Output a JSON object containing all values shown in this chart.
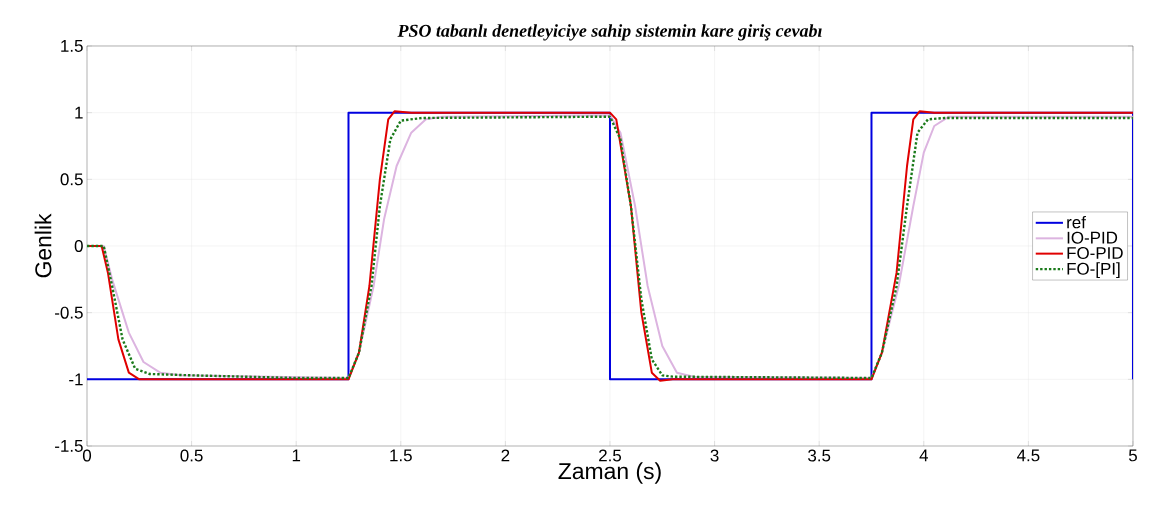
{
  "chart_data": {
    "type": "line",
    "title": "PSO tabanlı denetleyiciye sahip sistemin kare giriş cevabı",
    "xlabel": "Zaman (s)",
    "ylabel": "Genlik",
    "xlim": [
      0,
      5
    ],
    "ylim": [
      -1.5,
      1.5
    ],
    "xticks": [
      0,
      0.5,
      1,
      1.5,
      2,
      2.5,
      3,
      3.5,
      4,
      4.5,
      5
    ],
    "yticks": [
      -1.5,
      -1,
      -0.5,
      0,
      0.5,
      1,
      1.5
    ],
    "grid": true,
    "legend": "right",
    "series": [
      {
        "name": "ref",
        "color": "#0000e0",
        "type": "step",
        "x": [
          0,
          1.25,
          1.25,
          2.5,
          2.5,
          3.75,
          3.75,
          5,
          5
        ],
        "values": [
          -1,
          -1,
          1,
          1,
          -1,
          -1,
          1,
          1,
          -1
        ]
      },
      {
        "name": "IO-PID",
        "color": "#dcb4e0",
        "x": [
          0,
          0.08,
          0.12,
          0.2,
          0.27,
          0.35,
          0.45,
          1.25,
          1.3,
          1.37,
          1.42,
          1.48,
          1.55,
          1.62,
          1.7,
          2.5,
          2.55,
          2.62,
          2.68,
          2.75,
          2.82,
          2.9,
          3.75,
          3.8,
          3.88,
          3.95,
          4.0,
          4.05,
          4.12,
          5
        ],
        "values": [
          0,
          0,
          -0.25,
          -0.65,
          -0.87,
          -0.95,
          -0.97,
          -0.99,
          -0.8,
          -0.3,
          0.2,
          0.6,
          0.85,
          0.95,
          0.97,
          0.98,
          0.85,
          0.3,
          -0.3,
          -0.75,
          -0.95,
          -0.98,
          -0.99,
          -0.8,
          -0.3,
          0.3,
          0.7,
          0.9,
          0.97,
          0.97
        ]
      },
      {
        "name": "FO-PID",
        "color": "#e00000",
        "x": [
          0,
          0.07,
          0.1,
          0.15,
          0.2,
          0.25,
          1.25,
          1.3,
          1.35,
          1.4,
          1.44,
          1.47,
          1.55,
          2.5,
          2.53,
          2.6,
          2.65,
          2.7,
          2.74,
          2.8,
          3.75,
          3.8,
          3.87,
          3.92,
          3.95,
          3.98,
          4.05,
          5
        ],
        "values": [
          0,
          0,
          -0.2,
          -0.7,
          -0.95,
          -1.0,
          -1.0,
          -0.8,
          -0.3,
          0.5,
          0.95,
          1.01,
          1.0,
          1.0,
          0.95,
          0.3,
          -0.5,
          -0.95,
          -1.01,
          -1.0,
          -1.0,
          -0.8,
          -0.2,
          0.6,
          0.95,
          1.01,
          1.0,
          1.0
        ]
      },
      {
        "name": "FO-[PI]",
        "color": "#1a7a1a",
        "line_style": "dotted",
        "x": [
          0,
          0.08,
          0.12,
          0.17,
          0.23,
          0.3,
          0.5,
          1.0,
          1.25,
          1.3,
          1.36,
          1.4,
          1.45,
          1.5,
          1.6,
          2.5,
          2.55,
          2.6,
          2.65,
          2.7,
          2.75,
          2.8,
          3.75,
          3.8,
          3.87,
          3.92,
          3.97,
          4.02,
          4.1,
          5
        ],
        "values": [
          0,
          0,
          -0.3,
          -0.7,
          -0.92,
          -0.96,
          -0.97,
          -0.99,
          -0.99,
          -0.8,
          -0.3,
          0.3,
          0.8,
          0.94,
          0.96,
          0.97,
          0.8,
          0.3,
          -0.4,
          -0.85,
          -0.97,
          -0.98,
          -0.99,
          -0.8,
          -0.3,
          0.3,
          0.85,
          0.95,
          0.96,
          0.96
        ]
      }
    ]
  }
}
